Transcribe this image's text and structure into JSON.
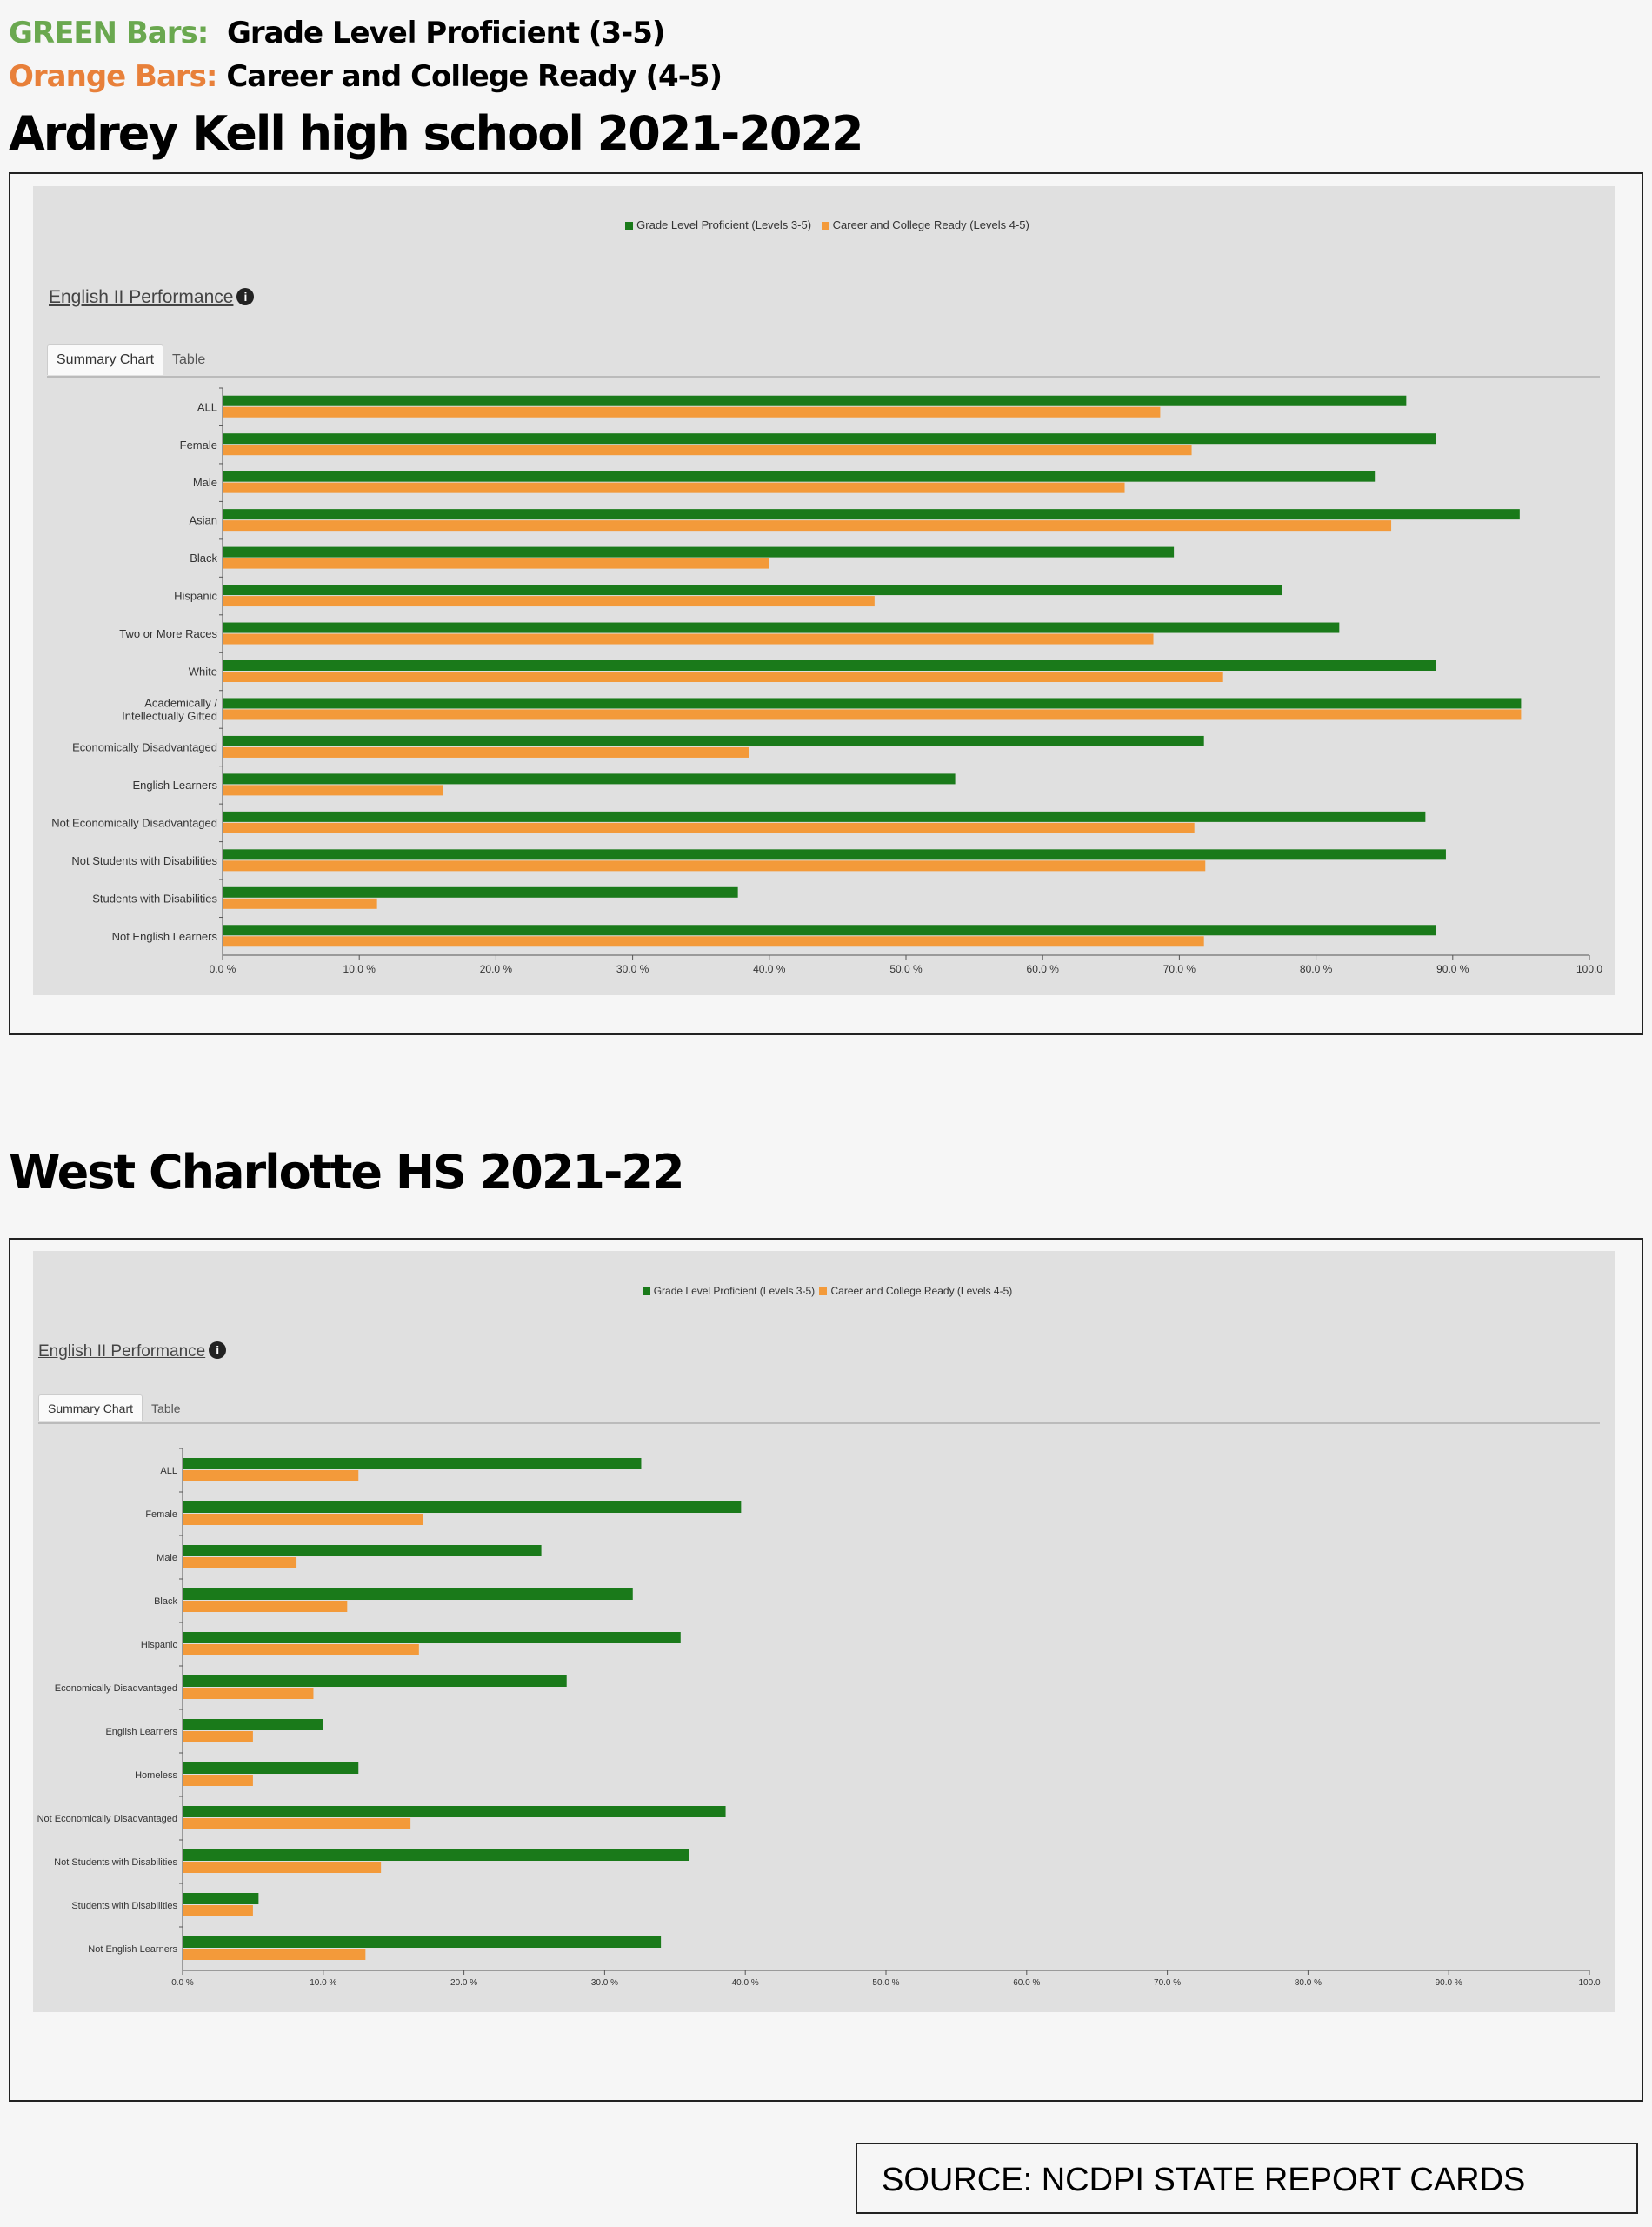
{
  "key": {
    "green_label": "GREEN Bars:",
    "green_desc": "Grade Level Proficient (3-5)",
    "orange_label": "Orange Bars:",
    "orange_desc": "Career and College Ready (4-5)"
  },
  "colors": {
    "green": "#1a7a1a",
    "orange": "#f39a3a",
    "panel": "#e0e0e0"
  },
  "source": "SOURCE:  NCDPI STATE REPORT CARDS",
  "chart_data": [
    {
      "type": "bar",
      "orientation": "horizontal",
      "school_title": "Ardrey Kell high school 2021-2022",
      "title": "English II Performance",
      "info_icon": "i",
      "tabs": [
        "Summary Chart",
        "Table"
      ],
      "legend": [
        "Grade Level Proficient (Levels 3-5)",
        "Career and College Ready (Levels 4-5)"
      ],
      "categories": [
        "ALL",
        "Female",
        "Male",
        "Asian",
        "Black",
        "Hispanic",
        "Two or More Races",
        "White",
        "Academically / Intellectually Gifted",
        "Economically Disadvantaged",
        "English Learners",
        "Not Economically Disadvantaged",
        "Not Students with Disabilities",
        "Students with Disabilities",
        "Not English Learners"
      ],
      "series": [
        {
          "name": "Grade Level Proficient (Levels 3-5)",
          "values": [
            86.6,
            88.8,
            84.3,
            94.9,
            69.6,
            77.5,
            81.7,
            88.8,
            95.0,
            71.8,
            53.6,
            88.0,
            89.5,
            37.7,
            88.8
          ]
        },
        {
          "name": "Career and College Ready (Levels 4-5)",
          "values": [
            68.6,
            70.9,
            66.0,
            85.5,
            40.0,
            47.7,
            68.1,
            73.2,
            95.0,
            38.5,
            16.1,
            71.1,
            71.9,
            11.3,
            71.8
          ]
        }
      ],
      "xticks": [
        "0.0 %",
        "10.0 %",
        "20.0 %",
        "30.0 %",
        "40.0 %",
        "50.0 %",
        "60.0 %",
        "70.0 %",
        "80.0 %",
        "90.0 %",
        "100.0"
      ],
      "xlim": [
        0,
        100
      ],
      "grid": false,
      "legend_position": "top-center"
    },
    {
      "type": "bar",
      "orientation": "horizontal",
      "school_title": "West Charlotte HS  2021-22",
      "title": "English II Performance",
      "info_icon": "i",
      "tabs": [
        "Summary Chart",
        "Table"
      ],
      "legend": [
        "Grade Level Proficient (Levels 3-5)",
        "Career and College Ready (Levels 4-5)"
      ],
      "categories": [
        "ALL",
        "Female",
        "Male",
        "Black",
        "Hispanic",
        "Economically Disadvantaged",
        "English Learners",
        "Homeless",
        "Not Economically Disadvantaged",
        "Not Students with Disabilities",
        "Students with Disabilities",
        "Not English Learners"
      ],
      "series": [
        {
          "name": "Grade Level Proficient (Levels 3-5)",
          "values": [
            32.6,
            39.7,
            25.5,
            32.0,
            35.4,
            27.3,
            10.0,
            12.5,
            38.6,
            36.0,
            5.4,
            34.0
          ]
        },
        {
          "name": "Career and College Ready (Levels 4-5)",
          "values": [
            12.5,
            17.1,
            8.1,
            11.7,
            16.8,
            9.3,
            5.0,
            5.0,
            16.2,
            14.1,
            5.0,
            13.0
          ]
        }
      ],
      "xticks": [
        "0.0 %",
        "10.0 %",
        "20.0 %",
        "30.0 %",
        "40.0 %",
        "50.0 %",
        "60.0 %",
        "70.0 %",
        "80.0 %",
        "90.0 %",
        "100.0"
      ],
      "xlim": [
        0,
        100
      ],
      "grid": false,
      "legend_position": "top-center"
    }
  ]
}
